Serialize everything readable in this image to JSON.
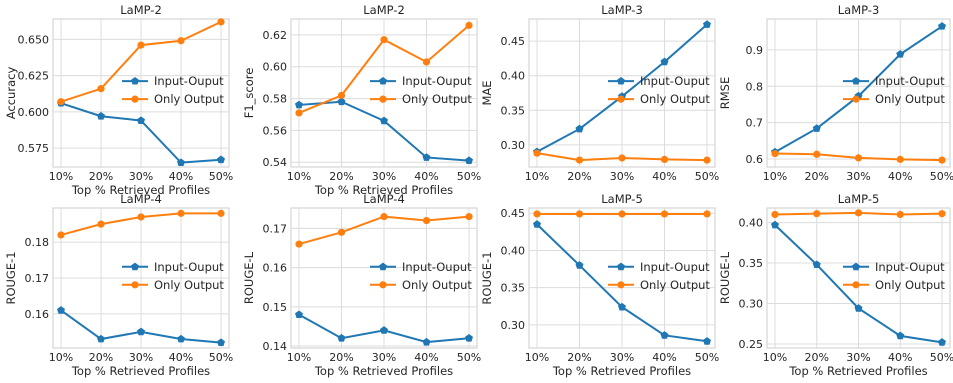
{
  "colors": {
    "input_output": "#1f77b4",
    "only_output": "#ff7f0e",
    "grid": "#dcdcdc",
    "axes": "#cccccc"
  },
  "chart_data": [
    {
      "type": "line",
      "title": "LaMP-2",
      "xlabel": "Top % Retrieved Profiles",
      "ylabel": "Accuracy",
      "categories": [
        "10%",
        "20%",
        "30%",
        "40%",
        "50%"
      ],
      "ylim": [
        0.562,
        0.664
      ],
      "yticks": [
        0.575,
        0.6,
        0.625,
        0.65
      ],
      "ytick_labels": [
        "0.575",
        "0.600",
        "0.625",
        "0.650"
      ],
      "legend_position": "center-right",
      "grid": true,
      "series": [
        {
          "name": "Input-Ouput",
          "color": "#1f77b4",
          "marker": "pentagon",
          "values": [
            0.606,
            0.597,
            0.594,
            0.565,
            0.567
          ]
        },
        {
          "name": "Only Output",
          "color": "#ff7f0e",
          "marker": "circle",
          "values": [
            0.607,
            0.616,
            0.646,
            0.649,
            0.662
          ]
        }
      ]
    },
    {
      "type": "line",
      "title": "LaMP-2",
      "xlabel": "Top % Retrieved Profiles",
      "ylabel": "F1_score",
      "categories": [
        "10%",
        "20%",
        "30%",
        "40%",
        "50%"
      ],
      "ylim": [
        0.537,
        0.63
      ],
      "yticks": [
        0.54,
        0.56,
        0.58,
        0.6,
        0.62
      ],
      "ytick_labels": [
        "0.54",
        "0.56",
        "0.58",
        "0.60",
        "0.62"
      ],
      "legend_position": "center-right",
      "grid": true,
      "series": [
        {
          "name": "Input-Ouput",
          "color": "#1f77b4",
          "marker": "pentagon",
          "values": [
            0.576,
            0.578,
            0.566,
            0.543,
            0.541
          ]
        },
        {
          "name": "Only Output",
          "color": "#ff7f0e",
          "marker": "circle",
          "values": [
            0.571,
            0.582,
            0.617,
            0.603,
            0.626
          ]
        }
      ]
    },
    {
      "type": "line",
      "title": "LaMP-3",
      "xlabel": "",
      "ylabel": "MAE",
      "categories": [
        "10%",
        "20%",
        "30%",
        "40%",
        "50%"
      ],
      "ylim": [
        0.268,
        0.482
      ],
      "yticks": [
        0.3,
        0.35,
        0.4,
        0.45
      ],
      "ytick_labels": [
        "0.30",
        "0.35",
        "0.40",
        "0.45"
      ],
      "legend_position": "center-right",
      "grid": true,
      "series": [
        {
          "name": "Input-Ouput",
          "color": "#1f77b4",
          "marker": "pentagon",
          "values": [
            0.29,
            0.323,
            0.37,
            0.42,
            0.474
          ]
        },
        {
          "name": "Only Output",
          "color": "#ff7f0e",
          "marker": "circle",
          "values": [
            0.288,
            0.278,
            0.281,
            0.279,
            0.278
          ]
        }
      ]
    },
    {
      "type": "line",
      "title": "LaMP-3",
      "xlabel": "",
      "ylabel": "RMSE",
      "categories": [
        "10%",
        "20%",
        "30%",
        "40%",
        "50%"
      ],
      "ylim": [
        0.578,
        0.985
      ],
      "yticks": [
        0.6,
        0.7,
        0.8,
        0.9
      ],
      "ytick_labels": [
        "0.6",
        "0.7",
        "0.8",
        "0.9"
      ],
      "legend_position": "center-right",
      "grid": true,
      "series": [
        {
          "name": "Input-Ouput",
          "color": "#1f77b4",
          "marker": "pentagon",
          "values": [
            0.619,
            0.684,
            0.773,
            0.888,
            0.965
          ]
        },
        {
          "name": "Only Output",
          "color": "#ff7f0e",
          "marker": "circle",
          "values": [
            0.615,
            0.613,
            0.603,
            0.599,
            0.597
          ]
        }
      ]
    },
    {
      "type": "line",
      "title": "LaMP-4",
      "xlabel": "Top % Retrieved Profiles",
      "ylabel": "ROUGE-1",
      "categories": [
        "10%",
        "20%",
        "30%",
        "40%",
        "50%"
      ],
      "ylim": [
        0.1505,
        0.1895
      ],
      "yticks": [
        0.16,
        0.17,
        0.18
      ],
      "ytick_labels": [
        "0.16",
        "0.17",
        "0.18"
      ],
      "legend_position": "center-right",
      "grid": true,
      "series": [
        {
          "name": "Input-Ouput",
          "color": "#1f77b4",
          "marker": "pentagon",
          "values": [
            0.161,
            0.153,
            0.155,
            0.153,
            0.152
          ]
        },
        {
          "name": "Only Output",
          "color": "#ff7f0e",
          "marker": "circle",
          "values": [
            0.182,
            0.185,
            0.187,
            0.188,
            0.188
          ]
        }
      ]
    },
    {
      "type": "line",
      "title": "LaMP-4",
      "xlabel": "Top % Retrieved Profiles",
      "ylabel": "ROUGE-L",
      "categories": [
        "10%",
        "20%",
        "30%",
        "40%",
        "50%"
      ],
      "ylim": [
        0.1395,
        0.1752
      ],
      "yticks": [
        0.14,
        0.15,
        0.16,
        0.17
      ],
      "ytick_labels": [
        "0.14",
        "0.15",
        "0.16",
        "0.17"
      ],
      "legend_position": "center-right",
      "grid": true,
      "series": [
        {
          "name": "Input-Ouput",
          "color": "#1f77b4",
          "marker": "pentagon",
          "values": [
            0.148,
            0.142,
            0.144,
            0.141,
            0.142
          ]
        },
        {
          "name": "Only Output",
          "color": "#ff7f0e",
          "marker": "circle",
          "values": [
            0.166,
            0.169,
            0.173,
            0.172,
            0.173
          ]
        }
      ]
    },
    {
      "type": "line",
      "title": "LaMP-5",
      "xlabel": "Top % Retrieved Profiles",
      "ylabel": "ROUGE-1",
      "categories": [
        "10%",
        "20%",
        "30%",
        "40%",
        "50%"
      ],
      "ylim": [
        0.269,
        0.457
      ],
      "yticks": [
        0.3,
        0.35,
        0.4,
        0.45
      ],
      "ytick_labels": [
        "0.30",
        "0.35",
        "0.40",
        "0.45"
      ],
      "legend_position": "center-right",
      "grid": true,
      "series": [
        {
          "name": "Input-Ouput",
          "color": "#1f77b4",
          "marker": "pentagon",
          "values": [
            0.435,
            0.38,
            0.324,
            0.286,
            0.278
          ]
        },
        {
          "name": "Only Output",
          "color": "#ff7f0e",
          "marker": "circle",
          "values": [
            0.449,
            0.449,
            0.449,
            0.449,
            0.449
          ]
        }
      ]
    },
    {
      "type": "line",
      "title": "LaMP-5",
      "xlabel": "Top % Retrieved Profiles",
      "ylabel": "ROUGE-L",
      "categories": [
        "10%",
        "20%",
        "30%",
        "40%",
        "50%"
      ],
      "ylim": [
        0.245,
        0.418
      ],
      "yticks": [
        0.25,
        0.3,
        0.35,
        0.4
      ],
      "ytick_labels": [
        "0.25",
        "0.30",
        "0.35",
        "0.40"
      ],
      "legend_position": "center-right",
      "grid": true,
      "series": [
        {
          "name": "Input-Ouput",
          "color": "#1f77b4",
          "marker": "pentagon",
          "values": [
            0.397,
            0.348,
            0.294,
            0.26,
            0.252
          ]
        },
        {
          "name": "Only Output",
          "color": "#ff7f0e",
          "marker": "circle",
          "values": [
            0.41,
            0.411,
            0.412,
            0.41,
            0.411
          ]
        }
      ]
    }
  ]
}
